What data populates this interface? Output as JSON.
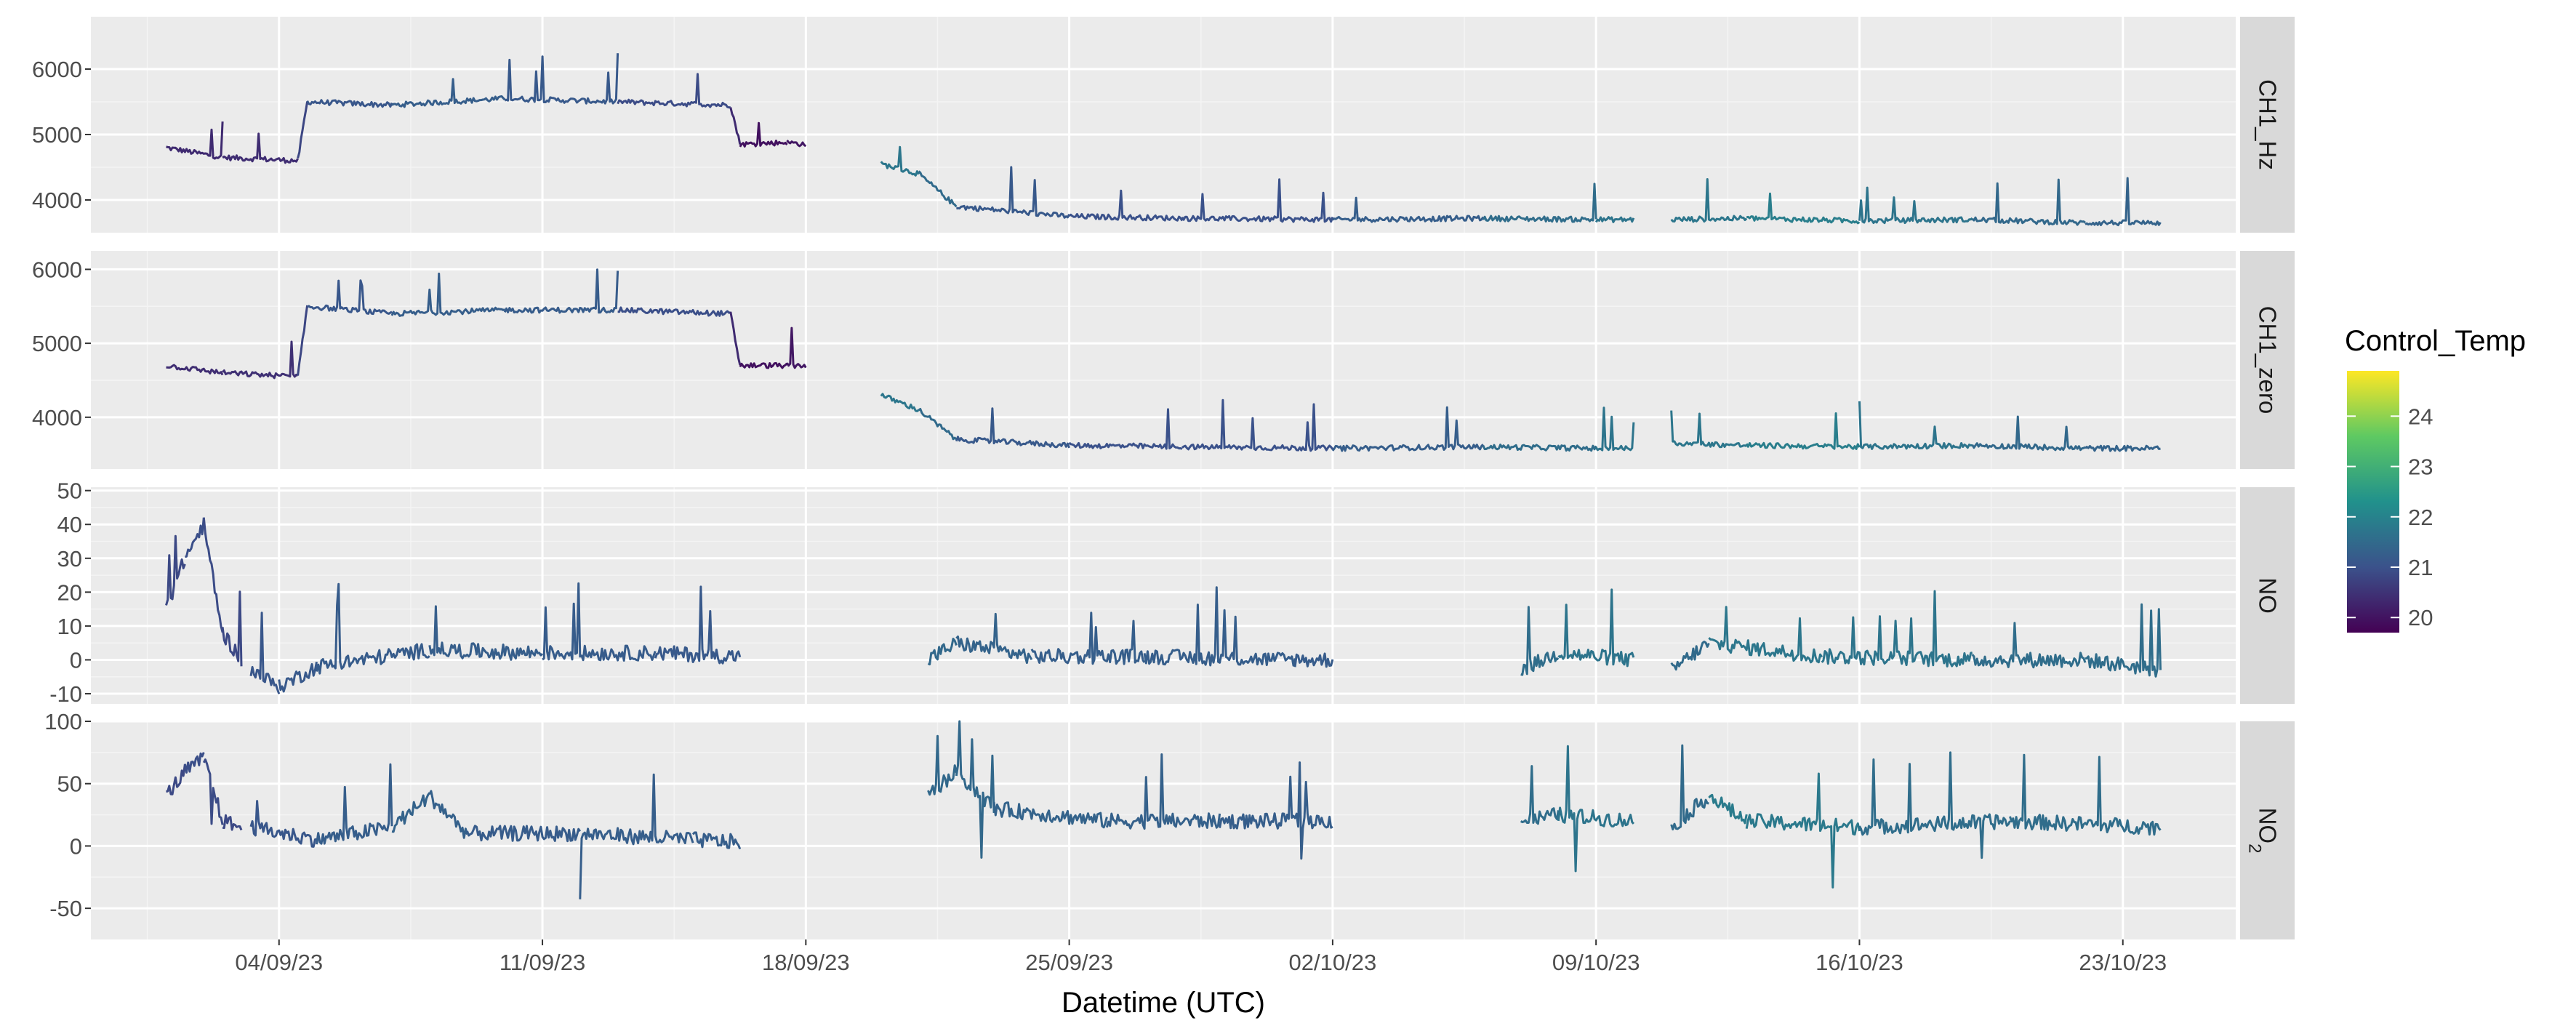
{
  "chart_data": {
    "type": "line",
    "xlabel": "Datetime (UTC)",
    "x_axis": {
      "range": [
        "2023-08-30",
        "2023-10-26"
      ],
      "ticks": [
        "04/09/23",
        "11/09/23",
        "18/09/23",
        "25/09/23",
        "02/10/23",
        "09/10/23",
        "16/10/23",
        "23/10/23"
      ]
    },
    "grid": true,
    "color_legend": {
      "title": "Control_Temp",
      "placement": "right",
      "range": [
        19.7,
        24.9
      ],
      "ticks": [
        "20",
        "21",
        "22",
        "23",
        "24"
      ],
      "colors": [
        "#440154",
        "#3b528b",
        "#21918c",
        "#5ec962",
        "#fde725"
      ]
    },
    "facet_strip_color": "#d9d9d9",
    "panel_background": "#ebebeb",
    "panels": [
      {
        "strip": "CH1_Hz",
        "ylim": [
          3500,
          6800
        ],
        "yticks": [
          "4000",
          "5000",
          "6000"
        ],
        "ytick_values": [
          4000,
          5000,
          6000
        ],
        "segments": [
          {
            "x": [
              "2023-09-01 00:00",
              "2023-09-02 12:00",
              "2023-09-04 12:00",
              "2023-09-04 18:00",
              "2023-09-07 00:00",
              "2023-09-10 00:00",
              "2023-09-13 00:00",
              "2023-09-16 00:00",
              "2023-09-16 06:00",
              "2023-09-17 12:00",
              "2023-09-18 00:00"
            ],
            "y": [
              4800,
              4650,
              4600,
              5500,
              5450,
              5550,
              5500,
              5450,
              4850,
              4880,
              4850
            ],
            "temp": [
              20.5,
              20.2,
              20.6,
              21.0,
              21.2,
              21.3,
              21.0,
              20.8,
              19.9,
              20.0,
              20.1
            ]
          },
          {
            "x": [
              "2023-09-20 00:00",
              "2023-09-21 00:00",
              "2023-09-22 00:00",
              "2023-09-25 00:00",
              "2023-09-28 00:00",
              "2023-10-02 00:00",
              "2023-10-06 00:00",
              "2023-10-09 00:00",
              "2023-10-10 00:00"
            ],
            "y": [
              4550,
              4400,
              3900,
              3750,
              3720,
              3700,
              3720,
              3700,
              3700
            ],
            "temp": [
              21.8,
              21.7,
              21.3,
              21.0,
              21.0,
              21.0,
              21.5,
              21.6,
              21.8
            ]
          },
          {
            "x": [
              "2023-10-11 00:00",
              "2023-10-13 00:00",
              "2023-10-16 00:00",
              "2023-10-19 00:00",
              "2023-10-22 00:00",
              "2023-10-24 00:00"
            ],
            "y": [
              3700,
              3720,
              3680,
              3700,
              3650,
              3650
            ],
            "temp": [
              21.5,
              22.0,
              21.8,
              21.6,
              21.3,
              21.4
            ]
          }
        ]
      },
      {
        "strip": "CH1_zero",
        "ylim": [
          3300,
          6250
        ],
        "yticks": [
          "4000",
          "5000",
          "6000"
        ],
        "ytick_values": [
          4000,
          5000,
          6000
        ],
        "segments": [
          {
            "x": [
              "2023-09-01 00:00",
              "2023-09-02 12:00",
              "2023-09-04 12:00",
              "2023-09-04 18:00",
              "2023-09-07 00:00",
              "2023-09-10 00:00",
              "2023-09-13 00:00",
              "2023-09-16 00:00",
              "2023-09-16 06:00",
              "2023-09-17 12:00",
              "2023-09-18 00:00"
            ],
            "y": [
              4700,
              4600,
              4550,
              5500,
              5400,
              5450,
              5450,
              5400,
              4700,
              4700,
              4700
            ],
            "temp": [
              20.5,
              20.3,
              20.6,
              21.0,
              21.2,
              21.3,
              21.1,
              20.8,
              19.9,
              20.0,
              20.1
            ]
          },
          {
            "x": [
              "2023-09-20 00:00",
              "2023-09-21 00:00",
              "2023-09-22 00:00",
              "2023-09-25 00:00",
              "2023-09-28 00:00",
              "2023-10-02 00:00",
              "2023-10-06 00:00",
              "2023-10-09 00:00",
              "2023-10-10 00:00"
            ],
            "y": [
              4300,
              4100,
              3700,
              3620,
              3600,
              3580,
              3600,
              3580,
              3580
            ],
            "temp": [
              21.8,
              21.7,
              21.3,
              21.0,
              21.0,
              21.0,
              21.5,
              21.6,
              21.8
            ]
          },
          {
            "x": [
              "2023-10-11 00:00",
              "2023-10-13 00:00",
              "2023-10-16 00:00",
              "2023-10-19 00:00",
              "2023-10-22 00:00",
              "2023-10-24 00:00"
            ],
            "y": [
              3650,
              3620,
              3600,
              3620,
              3580,
              3580
            ],
            "temp": [
              21.5,
              22.0,
              21.8,
              21.6,
              21.3,
              21.4
            ]
          }
        ]
      },
      {
        "strip": "NO",
        "ylim": [
          -13,
          51
        ],
        "yticks": [
          "-10",
          "0",
          "10",
          "20",
          "30",
          "40",
          "50"
        ],
        "ytick_values": [
          -10,
          0,
          10,
          20,
          30,
          40,
          50
        ],
        "segments": [
          {
            "x": [
              "2023-09-01 00:00",
              "2023-09-01 12:00",
              "2023-09-02 00:00",
              "2023-09-02 12:00",
              "2023-09-03 00:00"
            ],
            "y": [
              15,
              30,
              40,
              8,
              0
            ],
            "temp": [
              20.8,
              20.9,
              21.0,
              20.8,
              20.9
            ]
          },
          {
            "x": [
              "2023-09-03 06:00",
              "2023-09-04 00:00",
              "2023-09-05 00:00",
              "2023-09-08 00:00",
              "2023-09-11 00:00",
              "2023-09-14 00:00",
              "2023-09-16 06:00"
            ],
            "y": [
              -3,
              -8,
              -2,
              3,
              2,
              2,
              1
            ],
            "temp": [
              21.0,
              21.2,
              21.1,
              21.3,
              21.2,
              21.2,
              21.1
            ]
          },
          {
            "x": [
              "2023-09-21 06:00",
              "2023-09-22 00:00",
              "2023-09-24 00:00",
              "2023-09-27 00:00",
              "2023-10-01 00:00",
              "2023-10-02 00:00"
            ],
            "y": [
              0,
              5,
              1,
              1,
              0,
              0
            ],
            "temp": [
              21.4,
              21.5,
              21.2,
              21.3,
              21.2,
              21.2
            ]
          },
          {
            "x": [
              "2023-10-07 00:00",
              "2023-10-08 00:00",
              "2023-10-10 00:00"
            ],
            "y": [
              -3,
              2,
              0
            ],
            "temp": [
              21.3,
              21.8,
              21.6
            ]
          },
          {
            "x": [
              "2023-10-11 00:00",
              "2023-10-12 00:00",
              "2023-10-15 00:00",
              "2023-10-19 00:00",
              "2023-10-22 00:00",
              "2023-10-24 00:00"
            ],
            "y": [
              -3,
              5,
              1,
              0,
              0,
              -3
            ],
            "temp": [
              21.3,
              21.7,
              21.8,
              21.6,
              21.5,
              21.6
            ]
          }
        ]
      },
      {
        "strip": "NO2",
        "ylim": [
          -75,
          100
        ],
        "yticks": [
          "-50",
          "0",
          "50",
          "100"
        ],
        "ytick_values": [
          -50,
          0,
          50,
          100
        ],
        "segments": [
          {
            "x": [
              "2023-09-01 00:00",
              "2023-09-01 12:00",
              "2023-09-02 00:00",
              "2023-09-02 12:00",
              "2023-09-03 00:00"
            ],
            "y": [
              40,
              60,
              70,
              20,
              15
            ],
            "temp": [
              20.8,
              20.9,
              21.0,
              20.8,
              20.9
            ]
          },
          {
            "x": [
              "2023-09-03 06:00",
              "2023-09-05 00:00",
              "2023-09-07 00:00",
              "2023-09-08 00:00",
              "2023-09-09 00:00",
              "2023-09-12 00:00",
              "2023-09-15 00:00",
              "2023-09-16 06:00"
            ],
            "y": [
              15,
              5,
              15,
              40,
              10,
              10,
              5,
              3
            ],
            "temp": [
              21.0,
              21.2,
              21.3,
              21.4,
              21.2,
              21.2,
              21.3,
              21.2
            ]
          },
          {
            "x": [
              "2023-09-21 06:00",
              "2023-09-22 00:00",
              "2023-09-23 00:00",
              "2023-09-26 00:00",
              "2023-09-29 00:00",
              "2023-10-02 00:00"
            ],
            "y": [
              40,
              60,
              30,
              20,
              20,
              20
            ],
            "temp": [
              21.4,
              21.5,
              21.4,
              21.3,
              21.3,
              21.2
            ]
          },
          {
            "x": [
              "2023-10-07 00:00",
              "2023-10-08 00:00",
              "2023-10-10 00:00"
            ],
            "y": [
              20,
              25,
              20
            ],
            "temp": [
              21.3,
              21.8,
              21.6
            ]
          },
          {
            "x": [
              "2023-10-11 00:00",
              "2023-10-12 00:00",
              "2023-10-13 00:00",
              "2023-10-16 00:00",
              "2023-10-20 00:00",
              "2023-10-24 00:00"
            ],
            "y": [
              15,
              40,
              20,
              15,
              20,
              15
            ],
            "temp": [
              21.3,
              21.7,
              22.0,
              21.6,
              21.5,
              21.6
            ]
          }
        ]
      }
    ]
  }
}
